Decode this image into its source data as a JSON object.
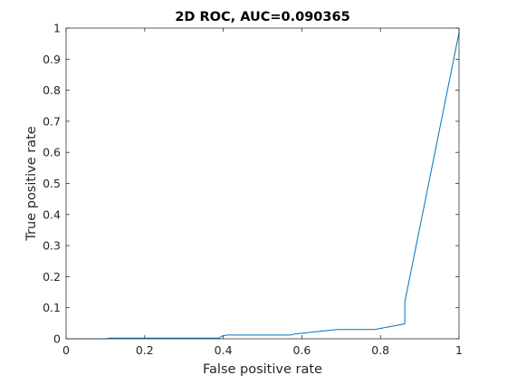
{
  "chart_data": {
    "type": "line",
    "title": "2D ROC, AUC=0.090365",
    "xlabel": "False positive rate",
    "ylabel": "True positive rate",
    "xlim": [
      0,
      1
    ],
    "ylim": [
      0,
      1
    ],
    "xticks": [
      "0",
      "0.2",
      "0.4",
      "0.6",
      "0.8",
      "1"
    ],
    "yticks": [
      "0",
      "0.1",
      "0.2",
      "0.3",
      "0.4",
      "0.5",
      "0.6",
      "0.7",
      "0.8",
      "0.9",
      "1"
    ],
    "grid": false,
    "series": [
      {
        "color": "#0072bd",
        "x": [
          0,
          0.1,
          0.11,
          0.39,
          0.395,
          0.41,
          0.57,
          0.585,
          0.69,
          0.785,
          0.862,
          0.862,
          1.0,
          1.0
        ],
        "y": [
          0,
          0,
          0.002,
          0.002,
          0.008,
          0.012,
          0.012,
          0.016,
          0.03,
          0.03,
          0.048,
          0.118,
          0.985,
          1.0
        ]
      }
    ]
  }
}
